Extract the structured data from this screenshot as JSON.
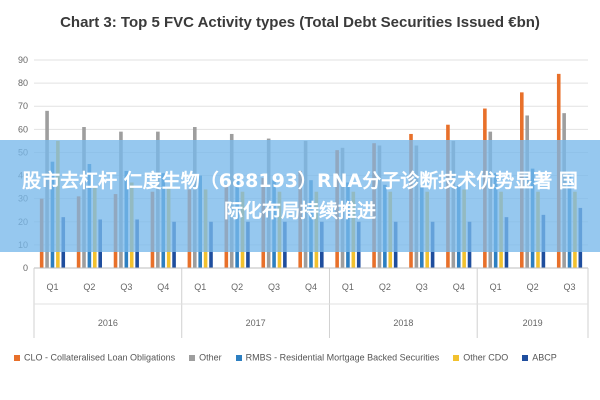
{
  "chart_data": {
    "type": "bar",
    "title": "Chart 3: Top 5 FVC Activity types (Total Debt Securities Issued €bn)",
    "xlabel": "",
    "ylabel": "",
    "ylim": [
      0,
      90
    ],
    "yticks": [
      0,
      10,
      20,
      30,
      40,
      50,
      60,
      70,
      80,
      90
    ],
    "grid": true,
    "legend_position": "bottom",
    "categories": [
      "Q1",
      "Q2",
      "Q3",
      "Q4",
      "Q1",
      "Q2",
      "Q3",
      "Q4",
      "Q1",
      "Q2",
      "Q3",
      "Q4",
      "Q1",
      "Q2",
      "Q3"
    ],
    "year_groups": [
      {
        "label": "2016",
        "count": 4
      },
      {
        "label": "2017",
        "count": 4
      },
      {
        "label": "2018",
        "count": 4
      },
      {
        "label": "2019",
        "count": 3
      }
    ],
    "series": [
      {
        "name": "CLO - Collateralised Loan Obligations",
        "color": "#e8702a",
        "values": [
          30,
          31,
          32,
          33,
          34,
          36,
          39,
          42,
          51,
          54,
          58,
          62,
          69,
          76,
          84
        ]
      },
      {
        "name": "Other",
        "color": "#9e9e9e",
        "values": [
          68,
          61,
          59,
          59,
          61,
          58,
          56,
          55,
          52,
          53,
          53,
          55,
          59,
          66,
          67
        ]
      },
      {
        "name": "RMBS - Residential Mortgage Backed Securities",
        "color": "#2d7fc1",
        "values": [
          46,
          45,
          42,
          41,
          40,
          39,
          38,
          38,
          37,
          36,
          36,
          36,
          41,
          43,
          41
        ]
      },
      {
        "name": "Other CDO",
        "color": "#f2c12e",
        "values": [
          55,
          35,
          37,
          35,
          34,
          33,
          33,
          33,
          33,
          33,
          33,
          34,
          33,
          33,
          33
        ]
      },
      {
        "name": "ABCP",
        "color": "#1f4e9e",
        "values": [
          22,
          21,
          21,
          20,
          20,
          20,
          20,
          20,
          20,
          20,
          20,
          20,
          22,
          23,
          26
        ]
      }
    ]
  },
  "overlay": {
    "headline": "股市去杠杆 仁度生物（688193）RNA分子诊断技术优势显著 国际化布局持续推进"
  }
}
